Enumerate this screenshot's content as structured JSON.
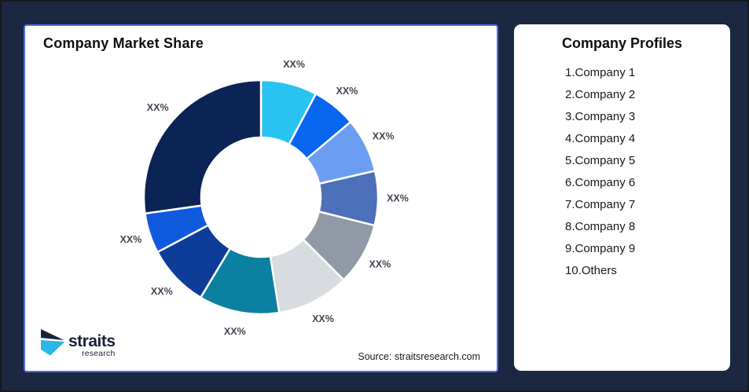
{
  "page": {
    "background_color": "#1C2742",
    "left_card_border_color": "#4A6FE8"
  },
  "left_card": {
    "title": "Company Market Share",
    "source": "Source: straitsresearch.com",
    "logo": {
      "name": "straits",
      "sub": "research",
      "mark_dark_color": "#16213E",
      "mark_cyan_color": "#29B7E8"
    }
  },
  "right_card": {
    "title": "Company Profiles",
    "items": [
      "1.Company 1",
      "2.Company 2",
      "3.Company 3",
      "4.Company 4",
      "5.Company 5",
      "6.Company 6",
      "7.Company 7",
      "8.Company 8",
      "9.Company 9",
      "10.Others"
    ]
  },
  "chart_data": {
    "type": "pie",
    "subtype": "donut",
    "title": "Company Market Share",
    "start_angle_deg_from_top": 0,
    "direction": "clockwise",
    "inner_radius_ratio": 0.51,
    "legend_position": "separate-right-card",
    "note": "All slice data labels are placeholder text XX%; slice sizes estimated from arc angles",
    "segments": [
      {
        "name": "Company 1",
        "label": "XX%",
        "angle_deg": 28,
        "est_pct": 7.8,
        "color": "#29C3F2"
      },
      {
        "name": "Company 2",
        "label": "XX%",
        "angle_deg": 22,
        "est_pct": 6.1,
        "color": "#0866F0"
      },
      {
        "name": "Company 3",
        "label": "XX%",
        "angle_deg": 27,
        "est_pct": 7.5,
        "color": "#6B9EF2"
      },
      {
        "name": "Company 4",
        "label": "XX%",
        "angle_deg": 27,
        "est_pct": 7.5,
        "color": "#4C70BA"
      },
      {
        "name": "Company 5",
        "label": "XX%",
        "angle_deg": 31,
        "est_pct": 8.6,
        "color": "#9199A6"
      },
      {
        "name": "Company 6",
        "label": "XX%",
        "angle_deg": 36,
        "est_pct": 10.0,
        "color": "#D8DBE0"
      },
      {
        "name": "Company 7",
        "label": "XX%",
        "angle_deg": 40,
        "est_pct": 11.1,
        "color": "#0C80A1"
      },
      {
        "name": "Company 8",
        "label": "XX%",
        "angle_deg": 31,
        "est_pct": 8.6,
        "color": "#0E3C99"
      },
      {
        "name": "Company 9",
        "label": "XX%",
        "angle_deg": 20,
        "est_pct": 5.6,
        "color": "#105ADE"
      },
      {
        "name": "Others",
        "label": "XX%",
        "angle_deg": 98,
        "est_pct": 27.2,
        "color": "#0B2355"
      }
    ]
  }
}
